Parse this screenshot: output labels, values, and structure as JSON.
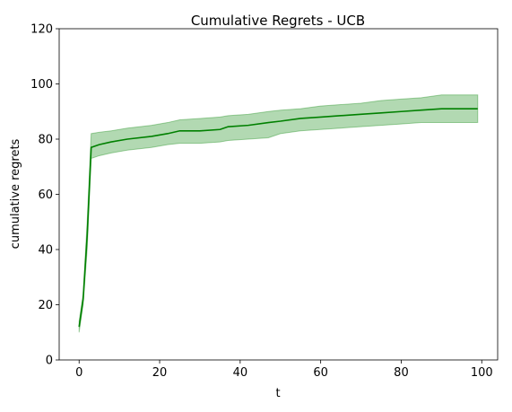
{
  "chart_data": {
    "type": "line",
    "title": "Cumulative Regrets - UCB",
    "xlabel": "t",
    "ylabel": "cumulative regrets",
    "xlim": [
      -4.95,
      103.95
    ],
    "ylim": [
      0,
      120
    ],
    "xticks": [
      0,
      20,
      40,
      60,
      80,
      100
    ],
    "yticks": [
      0,
      20,
      40,
      60,
      80,
      100,
      120
    ],
    "grid": false,
    "legend": "none",
    "colors": {
      "line": "#008000",
      "band": "#008000",
      "band_opacity": 0.3
    },
    "series": [
      {
        "x": [
          0,
          1,
          2,
          3,
          5,
          8,
          12,
          18,
          22,
          25,
          30,
          35,
          37,
          42,
          47,
          50,
          55,
          60,
          65,
          70,
          75,
          80,
          85,
          90,
          95,
          99
        ],
        "mean": [
          12,
          22,
          45,
          77,
          78,
          79,
          80,
          81,
          82,
          83,
          83,
          83.5,
          84.5,
          85,
          86,
          86.5,
          87.5,
          88,
          88.5,
          89,
          89.5,
          90,
          90.5,
          91,
          91,
          91
        ],
        "lower": [
          10,
          20,
          40,
          73,
          74,
          75,
          76,
          77,
          78,
          78.5,
          78.5,
          79,
          79.5,
          80,
          80.5,
          82,
          83,
          83.5,
          84,
          84.5,
          85,
          85.5,
          86,
          86,
          86,
          86
        ],
        "upper": [
          14,
          24,
          50,
          82,
          82.5,
          83,
          84,
          85,
          86,
          87,
          87.5,
          88,
          88.5,
          89,
          90,
          90.5,
          91,
          92,
          92.5,
          93,
          94,
          94.5,
          95,
          96,
          96,
          96
        ]
      }
    ]
  }
}
